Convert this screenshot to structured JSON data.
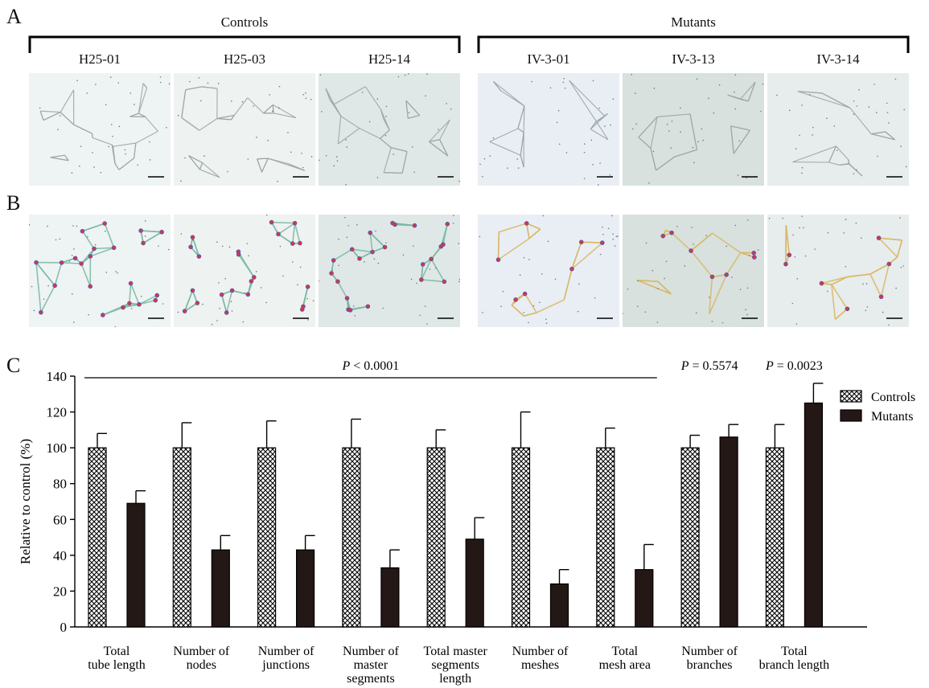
{
  "panels": {
    "a": "A",
    "b": "B",
    "c": "C"
  },
  "groups": {
    "controls": "Controls",
    "mutants": "Mutants"
  },
  "samples": [
    "H25-01",
    "H25-03",
    "H25-14",
    "IV-3-01",
    "IV-3-13",
    "IV-3-14"
  ],
  "chart_data": {
    "type": "bar",
    "ylabel": "Relative to control (%)",
    "ylim": [
      0,
      140
    ],
    "yticks": [
      0,
      20,
      40,
      60,
      80,
      100,
      120,
      140
    ],
    "categories": [
      [
        "Total",
        "tube length"
      ],
      [
        "Number of",
        "nodes"
      ],
      [
        "Number of",
        "junctions"
      ],
      [
        "Number of",
        "master",
        "segments"
      ],
      [
        "Total master",
        "segments",
        "length"
      ],
      [
        "Number of",
        "meshes"
      ],
      [
        "Total",
        "mesh area"
      ],
      [
        "Number of",
        "branches"
      ],
      [
        "Total",
        "branch length"
      ]
    ],
    "series": [
      {
        "name": "Controls",
        "pattern": "crosshatch",
        "values": [
          100,
          100,
          100,
          100,
          100,
          100,
          100,
          100,
          100
        ],
        "errors": [
          8,
          14,
          15,
          16,
          10,
          20,
          11,
          7,
          13
        ]
      },
      {
        "name": "Mutants",
        "color": "#231815",
        "values": [
          69,
          43,
          43,
          33,
          49,
          24,
          32,
          106,
          125
        ],
        "errors": [
          7,
          8,
          8,
          10,
          12,
          8,
          14,
          7,
          11
        ]
      }
    ],
    "legend": "top-right",
    "annotations": [
      {
        "label": "P < 0.0001",
        "p_letter": "P",
        "rest": " < 0.0001",
        "span": [
          0,
          6
        ]
      },
      {
        "label": "P = 0.5574",
        "p_letter": "P",
        "rest": " = 0.5574",
        "span": [
          7,
          7
        ]
      },
      {
        "label": "P = 0.0023",
        "p_letter": "P",
        "rest": " = 0.0023",
        "span": [
          8,
          8
        ]
      }
    ]
  }
}
